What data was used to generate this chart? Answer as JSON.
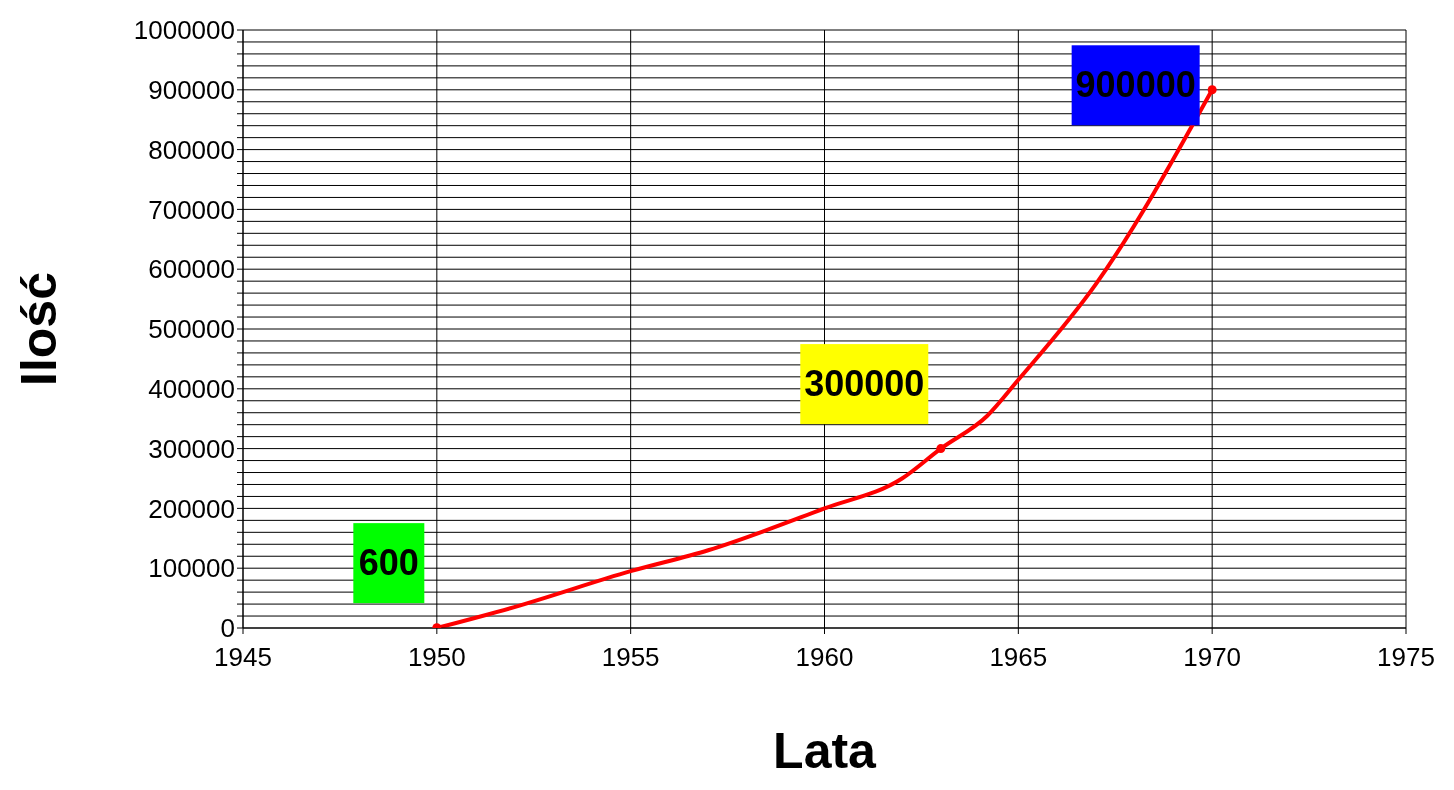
{
  "chart_data": {
    "type": "line",
    "xlabel": "Lata",
    "ylabel": "Ilość",
    "xlim": [
      1945,
      1975
    ],
    "xticks": [
      1945,
      1950,
      1955,
      1960,
      1965,
      1970,
      1975
    ],
    "ylim": [
      0,
      1000000
    ],
    "yticks": [
      0,
      {
        "value": 20000,
        "label": null
      },
      {
        "value": 40000,
        "label": null
      },
      {
        "value": 60000,
        "label": null
      },
      {
        "value": 80000,
        "label": null
      },
      100000,
      {
        "value": 120000,
        "label": null
      },
      {
        "value": 140000,
        "label": null
      },
      {
        "value": 160000,
        "label": null
      },
      {
        "value": 180000,
        "label": null
      },
      200000,
      {
        "value": 220000,
        "label": null
      },
      {
        "value": 240000,
        "label": null
      },
      {
        "value": 260000,
        "label": null
      },
      {
        "value": 280000,
        "label": null
      },
      300000,
      {
        "value": 320000,
        "label": null
      },
      {
        "value": 340000,
        "label": null
      },
      {
        "value": 360000,
        "label": null
      },
      {
        "value": 380000,
        "label": null
      },
      400000,
      {
        "value": 420000,
        "label": null
      },
      {
        "value": 440000,
        "label": null
      },
      {
        "value": 460000,
        "label": null
      },
      {
        "value": 480000,
        "label": null
      },
      500000,
      {
        "value": 520000,
        "label": null
      },
      {
        "value": 540000,
        "label": null
      },
      {
        "value": 560000,
        "label": null
      },
      {
        "value": 580000,
        "label": null
      },
      600000,
      {
        "value": 620000,
        "label": null
      },
      {
        "value": 640000,
        "label": null
      },
      {
        "value": 660000,
        "label": null
      },
      {
        "value": 680000,
        "label": null
      },
      700000,
      {
        "value": 720000,
        "label": null
      },
      {
        "value": 740000,
        "label": null
      },
      {
        "value": 760000,
        "label": null
      },
      {
        "value": 780000,
        "label": null
      },
      800000,
      {
        "value": 820000,
        "label": null
      },
      {
        "value": 840000,
        "label": null
      },
      {
        "value": 860000,
        "label": null
      },
      {
        "value": 880000,
        "label": null
      },
      900000,
      {
        "value": 920000,
        "label": null
      },
      {
        "value": 940000,
        "label": null
      },
      {
        "value": 960000,
        "label": null
      },
      {
        "value": 980000,
        "label": null
      },
      1000000
    ],
    "grid": true,
    "line_style": "solid",
    "series": [
      {
        "color": "#ff0000",
        "marker": "none",
        "x": [
          1950,
          1952,
          1955,
          1957,
          1960,
          1962,
          1963,
          1964.2,
          1965,
          1967,
          1970
        ],
        "values": [
          0,
          35000,
          95000,
          130000,
          200000,
          250000,
          300000,
          355000,
          415000,
          575000,
          900000
        ]
      },
      {
        "type": "scatter",
        "color": "#ff0000",
        "marker": "circle",
        "x": [
          1950,
          1963,
          1970
        ],
        "values": [
          600,
          300000,
          900000
        ],
        "data_labels": true
      }
    ]
  }
}
